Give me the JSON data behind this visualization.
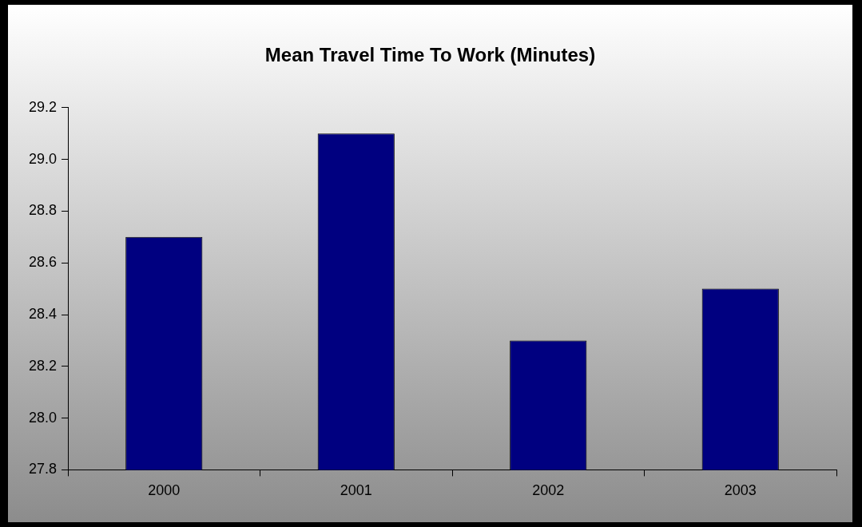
{
  "chart_data": {
    "type": "bar",
    "title": "Mean Travel Time To Work (Minutes)",
    "categories": [
      "2000",
      "2001",
      "2002",
      "2003"
    ],
    "values": [
      28.7,
      29.1,
      28.3,
      28.5
    ],
    "color": "#000080",
    "ylim": [
      27.8,
      29.2
    ],
    "yticks": [
      {
        "value": 27.8,
        "label": "27.8"
      },
      {
        "value": 28,
        "label": "28.0"
      },
      {
        "value": 28.2,
        "label": "28.2"
      },
      {
        "value": 28.4,
        "label": "28.4"
      },
      {
        "value": 28.6,
        "label": "28.6"
      },
      {
        "value": 28.8,
        "label": "28.8"
      },
      {
        "value": 29,
        "label": "29.0"
      },
      {
        "value": 29.2,
        "label": "29.2"
      }
    ],
    "legend": false
  }
}
